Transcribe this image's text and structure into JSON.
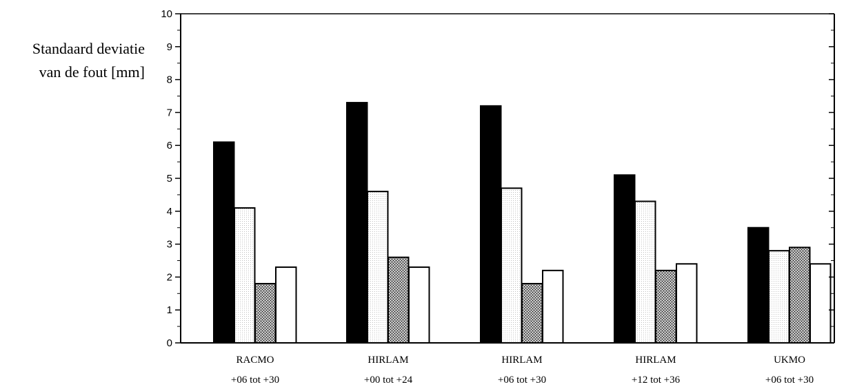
{
  "chart_data": {
    "type": "bar",
    "ylabel_lines": [
      "Standaard deviatie",
      "van de fout [mm]"
    ],
    "ylim": [
      0,
      10
    ],
    "yticks": [
      "0",
      "1",
      "2",
      "3",
      "4",
      "5",
      "6",
      "7",
      "8",
      "9",
      "10"
    ],
    "categories": [
      {
        "name": "RACMO",
        "range": "+06 tot +30"
      },
      {
        "name": "HIRLAM",
        "range": "+00 tot +24"
      },
      {
        "name": "HIRLAM",
        "range": "+06 tot +30"
      },
      {
        "name": "HIRLAM",
        "range": "+12 tot +36"
      },
      {
        "name": "UKMO",
        "range": "+06 tot +30"
      }
    ],
    "series": [
      {
        "fill": "black",
        "values": [
          6.1,
          7.3,
          7.2,
          5.1,
          3.5
        ]
      },
      {
        "fill": "dotted-white",
        "values": [
          4.1,
          4.6,
          4.7,
          4.3,
          2.8
        ]
      },
      {
        "fill": "crosshatch-gray",
        "values": [
          1.8,
          2.6,
          1.8,
          2.2,
          2.9
        ]
      },
      {
        "fill": "white",
        "values": [
          2.3,
          2.3,
          2.2,
          2.4,
          2.4
        ]
      }
    ],
    "grid": false,
    "legend": "none",
    "colors": {
      "black": "#000000",
      "white": "#ffffff",
      "dotted": "#d8d8d8",
      "crosshatch": "#555555"
    }
  }
}
